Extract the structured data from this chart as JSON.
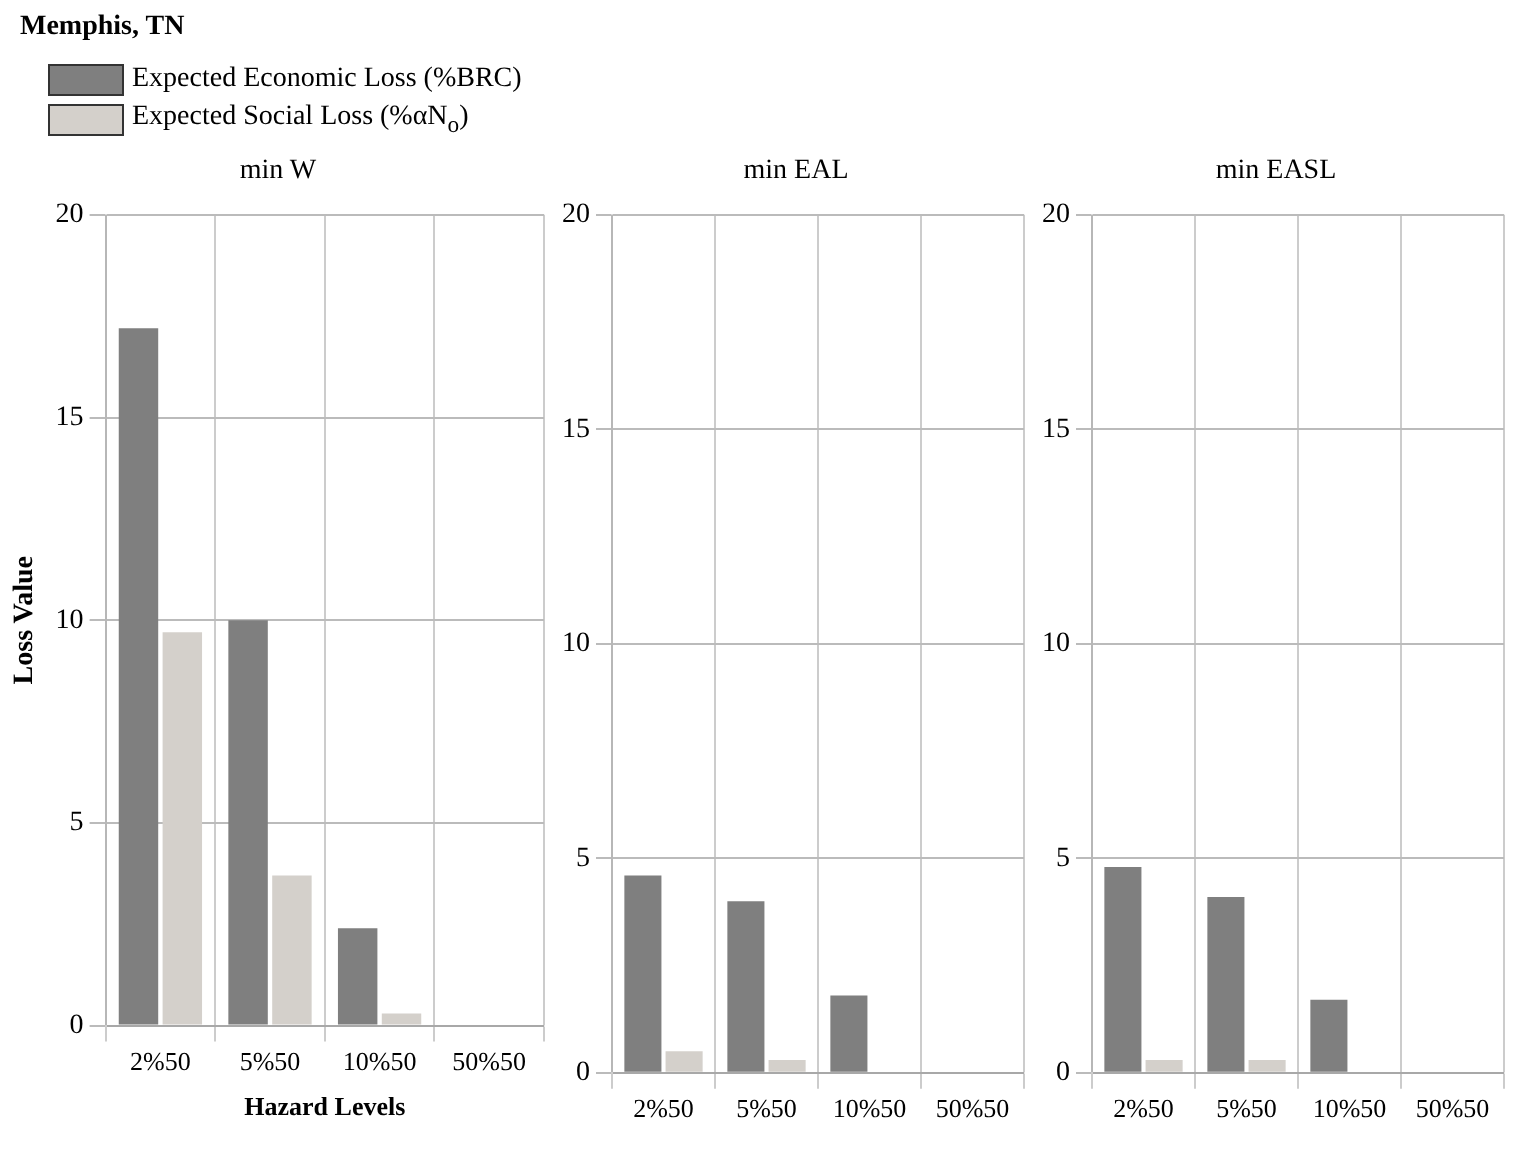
{
  "chart_data": [
    {
      "type": "bar",
      "title": "Memphis, TN",
      "subtitle": "min W",
      "xlabel": "Hazard Levels",
      "ylabel": "Loss Value",
      "categories": [
        "2%50",
        "5%50",
        "10%50",
        "50%50"
      ],
      "series": [
        {
          "name": "Expected Economic Loss (%BRC)",
          "color": "#7f7f7f",
          "values": [
            17.2,
            10.0,
            2.4,
            0
          ]
        },
        {
          "name": "Expected Social Loss (%αN$_{o}$)",
          "color": "#d4d0cb",
          "values": [
            9.7,
            3.7,
            0.3,
            0
          ]
        }
      ],
      "ylim": [
        0,
        20
      ],
      "yticks": [
        0,
        5,
        10,
        15,
        20
      ],
      "grid": true,
      "legend": "top left"
    },
    {
      "type": "bar",
      "subtitle": "min EAL",
      "categories": [
        "2%50",
        "5%50",
        "10%50",
        "50%50"
      ],
      "series": [
        {
          "color": "#7f7f7f",
          "values": [
            4.6,
            4.0,
            1.8,
            0
          ]
        },
        {
          "color": "#d4d0cb",
          "values": [
            0.5,
            0.3,
            0,
            0
          ]
        }
      ],
      "ylim": [
        0,
        20
      ],
      "yticks": [
        0,
        5,
        10,
        15,
        20
      ],
      "grid": true
    },
    {
      "type": "bar",
      "subtitle": "min EASL",
      "categories": [
        "2%50",
        "5%50",
        "10%50",
        "50%50"
      ],
      "series": [
        {
          "color": "#7f7f7f",
          "values": [
            4.8,
            4.1,
            1.7,
            0
          ]
        },
        {
          "color": "#d4d0cb",
          "values": [
            0.3,
            0.3,
            0,
            0
          ]
        }
      ],
      "ylim": [
        0,
        20
      ],
      "yticks": [
        0,
        5,
        10,
        15,
        20
      ],
      "grid": true
    }
  ]
}
